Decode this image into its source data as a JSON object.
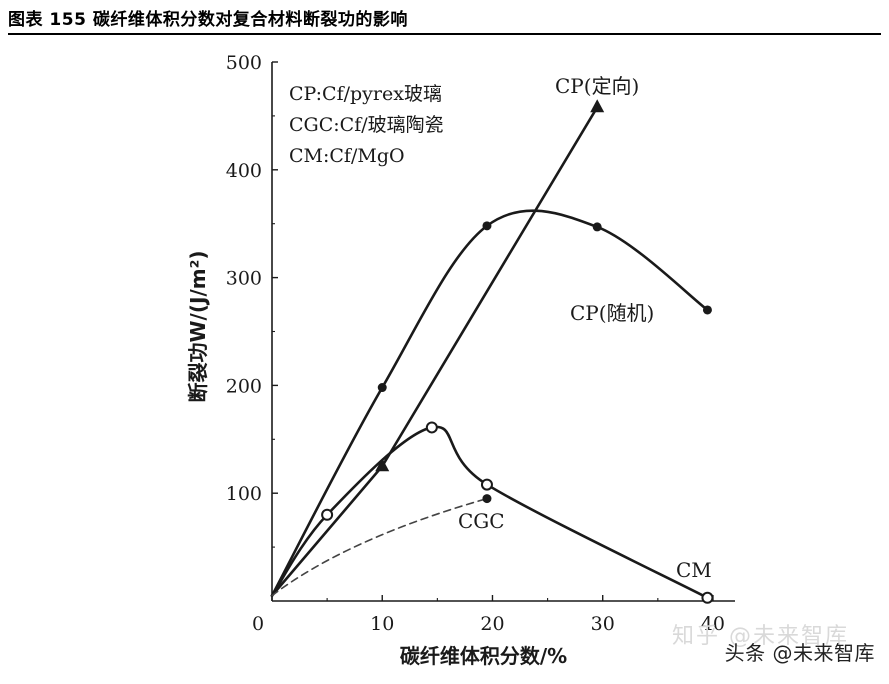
{
  "figure": {
    "title": "图表 155  碳纤维体积分数对复合材料断裂功的影响",
    "watermark_primary": "头条 @未来智库",
    "watermark_faint": "知乎 @未来智库"
  },
  "chart_data": {
    "type": "line",
    "xlabel": "碳纤维体积分数/%",
    "ylabel": "断裂功W/(J/m²)",
    "xlim": [
      0,
      42
    ],
    "ylim": [
      0,
      500
    ],
    "x_ticks": [
      0,
      10,
      20,
      30,
      40
    ],
    "y_ticks": [
      100,
      200,
      300,
      400,
      500
    ],
    "grid": false,
    "legend_lines": [
      "CP:Cf/pyrex玻璃",
      "CGC:Cf/玻璃陶瓷",
      "CM:Cf/MgO"
    ],
    "legend_position": "top-left",
    "series": [
      {
        "name": "CP(定向)",
        "marker": "triangle",
        "style": "solid",
        "points": [
          [
            0,
            5
          ],
          [
            10,
            125
          ],
          [
            29.5,
            458
          ]
        ]
      },
      {
        "name": "CP(随机)",
        "marker": "dot",
        "style": "solid",
        "points": [
          [
            0,
            5
          ],
          [
            10,
            198
          ],
          [
            19.5,
            348
          ],
          [
            29.5,
            347
          ],
          [
            39.5,
            270
          ]
        ]
      },
      {
        "name": "CM",
        "marker": "open-circle",
        "style": "solid",
        "points": [
          [
            0,
            5
          ],
          [
            5,
            80
          ],
          [
            14.5,
            161
          ],
          [
            19.5,
            108
          ],
          [
            39.5,
            3
          ]
        ]
      },
      {
        "name": "CGC",
        "marker": "dot",
        "style": "dashed",
        "points": [
          [
            0,
            5
          ],
          [
            19.5,
            95
          ]
        ]
      }
    ],
    "colors": {
      "ink": "#1a1a1a",
      "dashed": "#444444"
    }
  }
}
